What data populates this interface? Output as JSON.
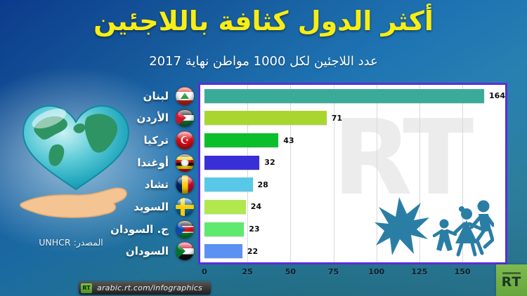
{
  "header": {
    "title": "أكثر الدول كثافة باللاجئين",
    "subtitle": "عدد اللاجئين لكل 1000 مواطن نهاية 2017"
  },
  "chart_data": {
    "type": "bar",
    "orientation": "horizontal",
    "title": "أكثر الدول كثافة باللاجئين",
    "subtitle": "عدد اللاجئين لكل 1000 مواطن نهاية 2017",
    "categories": [
      "لبنان",
      "الأردن",
      "تركيا",
      "أوغندا",
      "تشاد",
      "السويد",
      "ج. السودان",
      "السودان"
    ],
    "values": [
      164,
      71,
      43,
      32,
      28,
      24,
      23,
      22
    ],
    "bar_colors": [
      "#3aab99",
      "#a8d62f",
      "#0bbe2b",
      "#3a2ed8",
      "#58c8e8",
      "#b0e84e",
      "#5fe96e",
      "#5b91f0"
    ],
    "flag_icons": [
      "lebanon",
      "jordan",
      "turkey",
      "uganda",
      "chad",
      "sweden",
      "south-sudan",
      "sudan"
    ],
    "x_ticks": [
      0,
      25,
      50,
      75,
      100,
      125,
      150
    ],
    "xlim": [
      0,
      175
    ],
    "grid": true,
    "legend_position": "none"
  },
  "source": {
    "label": "المصدر:",
    "value": "UNHCR"
  },
  "watermark": "RT",
  "footer": {
    "url": "arabic.rt.com/infographics",
    "mini_logo": "RT",
    "corner_logo": "RT"
  },
  "colors": {
    "title": "#f6ee15",
    "chart_border": "#5b2ed8",
    "plot_background": "#ffffff",
    "pictogram": "#2a7ea6",
    "rt_green": "#79b544"
  }
}
